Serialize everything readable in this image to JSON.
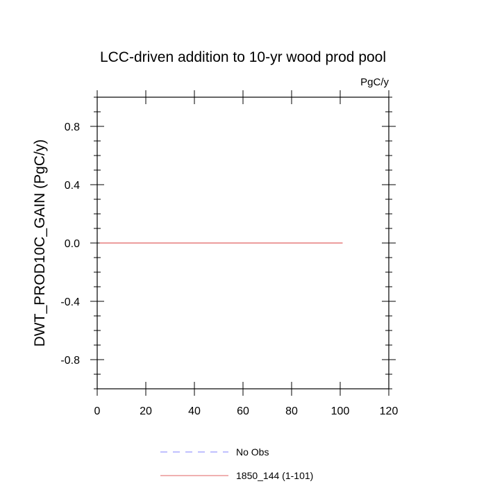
{
  "chart_data": {
    "type": "line",
    "title": "LCC-driven addition to 10-yr wood prod pool",
    "units": "PgC/y",
    "xlabel": "",
    "ylabel": "DWT_PROD10C_GAIN  (PgC/y)",
    "xlim": [
      0,
      120
    ],
    "ylim": [
      -1.0,
      1.0
    ],
    "xticks": [
      0,
      20,
      40,
      60,
      80,
      100,
      120
    ],
    "xtick_labels": [
      "0",
      "20",
      "40",
      "60",
      "80",
      "100",
      "120"
    ],
    "yticks": [
      -0.8,
      -0.4,
      0.0,
      0.4,
      0.8
    ],
    "ytick_labels": [
      "-0.8",
      "-0.4",
      "0.0",
      "0.4",
      "0.8"
    ],
    "grid": false,
    "legend_position": "bottom",
    "series": [
      {
        "name": "No Obs",
        "color": "#8080ff",
        "style": "dashed",
        "x": [],
        "y": []
      },
      {
        "name": "1850_144 (1-101)",
        "color": "#e06060",
        "style": "solid",
        "x": [
          1,
          101
        ],
        "y": [
          0.0,
          0.0
        ]
      }
    ]
  }
}
